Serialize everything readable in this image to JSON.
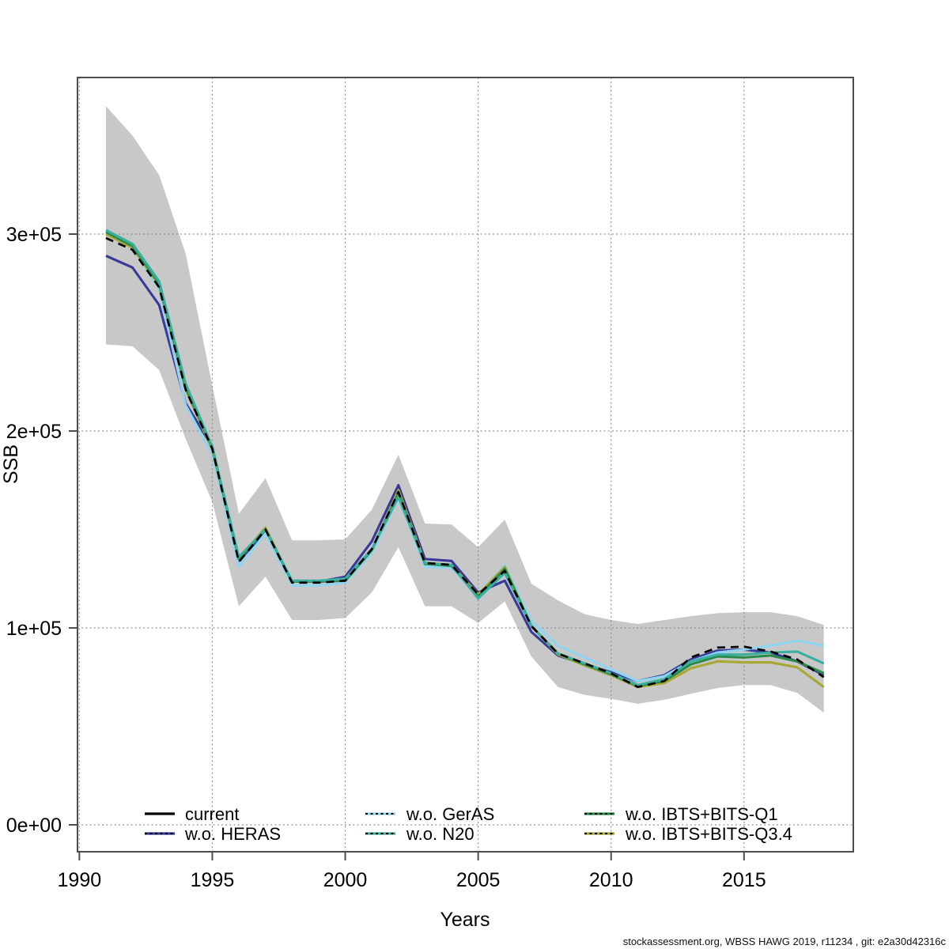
{
  "chart_data": {
    "type": "line",
    "title": "",
    "xlabel": "Years",
    "ylabel": "SSB",
    "grid": "dotted",
    "x": [
      1991,
      1992,
      1993,
      1994,
      1995,
      1996,
      1997,
      1998,
      1999,
      2000,
      2001,
      2002,
      2003,
      2004,
      2005,
      2006,
      2007,
      2008,
      2009,
      2010,
      2011,
      2012,
      2013,
      2014,
      2015,
      2016,
      2017,
      2018
    ],
    "x_ticks": [
      1990,
      1995,
      2000,
      2005,
      2010,
      2015
    ],
    "y_ticks": [
      {
        "value": 0,
        "label": "0e+00"
      },
      {
        "value": 100000,
        "label": "1e+05"
      },
      {
        "value": 200000,
        "label": "2e+05"
      },
      {
        "value": 300000,
        "label": "3e+05"
      }
    ],
    "xlim": [
      1989.93,
      2019.11
    ],
    "ylim": [
      -13650,
      379520
    ],
    "band": {
      "name": "confidence-band",
      "color": "#c8c8c8",
      "hi": [
        365000,
        350000,
        330000,
        290000,
        223000,
        158000,
        176000,
        144500,
        144500,
        145000,
        160000,
        188000,
        153000,
        152500,
        141000,
        155000,
        122500,
        114000,
        107000,
        104000,
        102000,
        104000,
        106000,
        107500,
        108000,
        108000,
        106000,
        101500
      ],
      "lo": [
        244000,
        243000,
        231000,
        196000,
        164000,
        111000,
        126000,
        104000,
        104000,
        105000,
        118000,
        141000,
        111000,
        111000,
        102500,
        113500,
        85500,
        70000,
        66000,
        64000,
        61500,
        63500,
        66500,
        69500,
        71000,
        71000,
        67000,
        57000
      ]
    },
    "series": [
      {
        "name": "w.o. HERAS",
        "color": "#39399b",
        "dashed": false,
        "values": [
          289000,
          283000,
          264000,
          214000,
          192000,
          134000,
          149000,
          123500,
          123500,
          126000,
          144000,
          172500,
          135000,
          134000,
          118000,
          124000,
          98000,
          86000,
          81500,
          77500,
          73000,
          76000,
          84000,
          88500,
          89000,
          87500,
          83000,
          76000
        ]
      },
      {
        "name": "w.o. GerAS",
        "color": "#8fd4f0",
        "dashed": false,
        "values": [
          300000,
          293000,
          272000,
          213000,
          188000,
          131000,
          148000,
          121500,
          121500,
          123000,
          138000,
          166000,
          131000,
          130500,
          116000,
          132000,
          103500,
          91000,
          85000,
          79000,
          73000,
          75500,
          83000,
          87500,
          89000,
          91000,
          93500,
          91000
        ]
      },
      {
        "name": "w.o. IBTS+BITS-Q3.4",
        "color": "#a8a835",
        "dashed": false,
        "values": [
          300000,
          293000,
          274000,
          221000,
          190500,
          135000,
          151000,
          123500,
          123500,
          124000,
          139500,
          170000,
          133000,
          132000,
          117000,
          131000,
          101000,
          86500,
          81000,
          76000,
          70000,
          72000,
          79500,
          83000,
          82500,
          82500,
          80000,
          70000
        ]
      },
      {
        "name": "w.o. IBTS+BITS-Q1",
        "color": "#2a8a4a",
        "dashed": false,
        "values": [
          301000,
          294000,
          275000,
          222000,
          191500,
          135000,
          150000,
          123500,
          123500,
          124000,
          139500,
          168500,
          132500,
          131500,
          116000,
          130000,
          101000,
          87000,
          81500,
          76500,
          70500,
          73000,
          81500,
          85500,
          85000,
          86000,
          83000,
          77000
        ]
      },
      {
        "name": "w.o. N20",
        "color": "#3aafa0",
        "dashed": false,
        "values": [
          302000,
          295000,
          276000,
          224000,
          192000,
          136000,
          150000,
          124000,
          124000,
          125000,
          140000,
          166500,
          133000,
          132000,
          115000,
          128000,
          101000,
          87000,
          82000,
          77000,
          71000,
          74000,
          83000,
          86500,
          86500,
          87500,
          88000,
          82000
        ]
      },
      {
        "name": "current",
        "color": "#000000",
        "dashed": true,
        "values": [
          298000,
          292000,
          273000,
          221000,
          191000,
          133500,
          150000,
          123000,
          123000,
          124000,
          140000,
          169000,
          133000,
          132000,
          117000,
          129000,
          101000,
          87000,
          82000,
          77000,
          70000,
          73000,
          85000,
          90000,
          90500,
          88000,
          84000,
          75000
        ]
      }
    ],
    "legend": {
      "position": "bottom-inside",
      "items": [
        {
          "label": "current",
          "color": "#000000",
          "dashed_overlay": false
        },
        {
          "label": "w.o. HERAS",
          "color": "#39399b",
          "dashed_overlay": true
        },
        {
          "label": "w.o. GerAS",
          "color": "#8fd4f0",
          "dashed_overlay": true
        },
        {
          "label": "w.o. N20",
          "color": "#3aafa0",
          "dashed_overlay": true
        },
        {
          "label": "w.o. IBTS+BITS-Q1",
          "color": "#2a8a4a",
          "dashed_overlay": true
        },
        {
          "label": "w.o. IBTS+BITS-Q3.4",
          "color": "#a8a835",
          "dashed_overlay": true
        }
      ]
    }
  },
  "footer": {
    "note": "stockassessment.org, WBSS HAWG 2019, r11234 , git: e2a30d42316c"
  }
}
